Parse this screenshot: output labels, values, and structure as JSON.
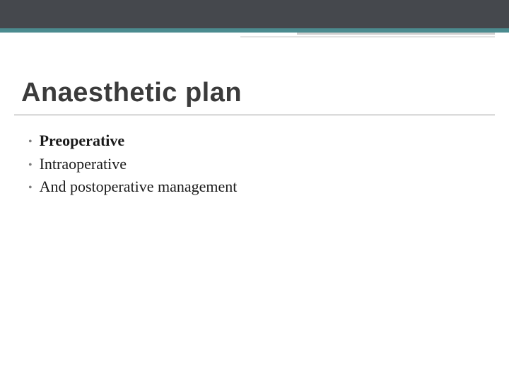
{
  "colors": {
    "top_band": "#45484d",
    "teal_line": "#4b8b8f",
    "grey_underline_short": "#cfcfcf",
    "grey_underline_long": "#e3e3e3",
    "title_text": "#3b3b3b",
    "title_rule": "#9a9a9a",
    "bullet_marker": "#7c7c7c",
    "body_text": "#1a1a1a",
    "background": "#ffffff"
  },
  "title": "Anaesthetic plan",
  "bullets": [
    {
      "text": "Preoperative",
      "bold": true
    },
    {
      "text": "Intraoperative",
      "bold": false
    },
    {
      "text": "And postoperative management",
      "bold": false
    }
  ]
}
